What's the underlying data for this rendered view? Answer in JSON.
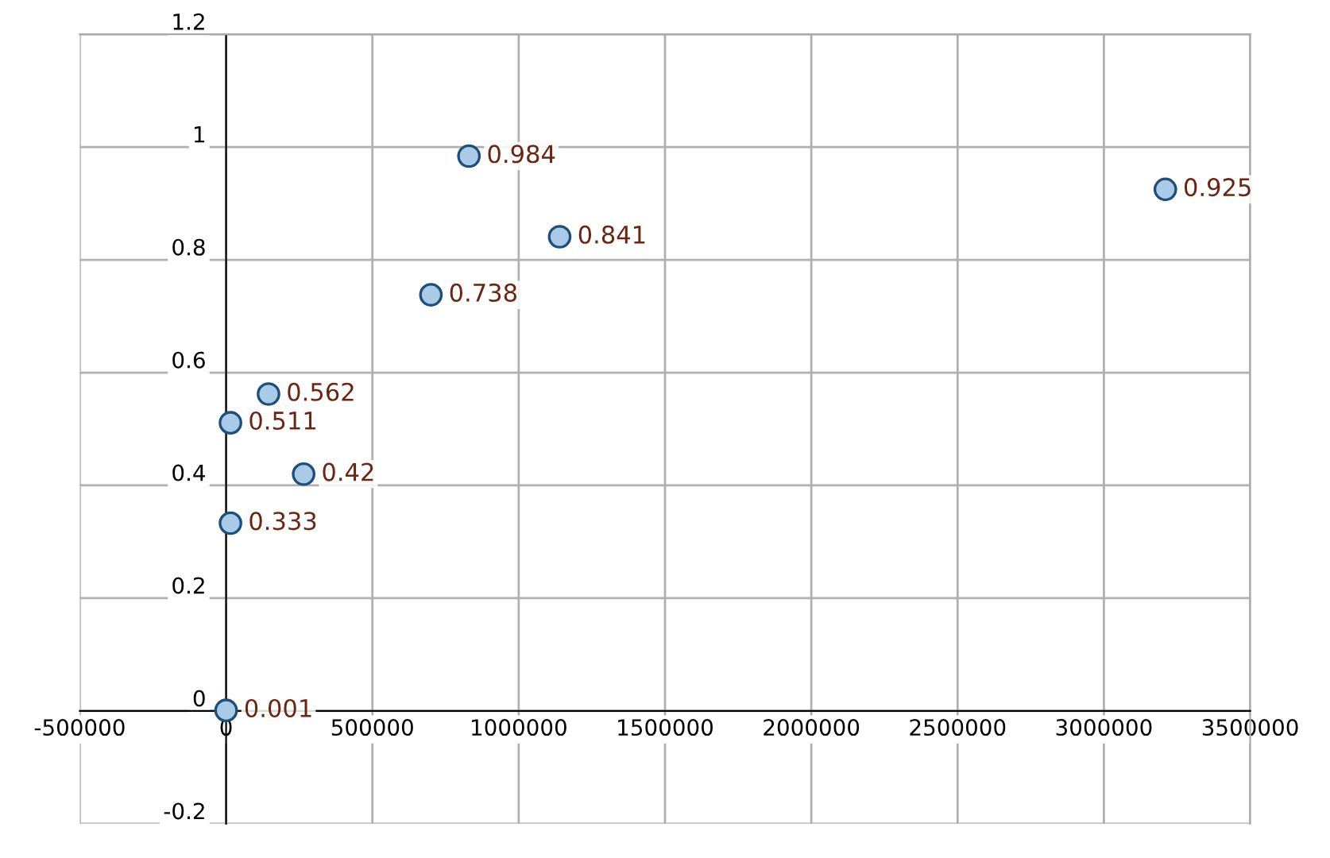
{
  "chart_data": {
    "type": "scatter",
    "x": [
      830000,
      1140000,
      700000,
      3210000,
      145000,
      15000,
      265000,
      15000,
      0
    ],
    "values": [
      0.984,
      0.841,
      0.738,
      0.925,
      0.562,
      0.511,
      0.42,
      0.333,
      0.001
    ],
    "color": "#a9cbe8",
    "marker": "circle",
    "data_labels": true,
    "xlim": [
      -500000,
      3500000
    ],
    "xticks": [
      -500000,
      0,
      500000,
      1000000,
      1500000,
      2000000,
      2500000,
      3000000,
      3500000
    ],
    "ylim": [
      -0.2,
      1.2
    ],
    "yticks": [
      -0.2,
      0,
      0.2,
      0.4,
      0.6,
      0.8,
      1,
      1.2
    ],
    "grid": true
  }
}
